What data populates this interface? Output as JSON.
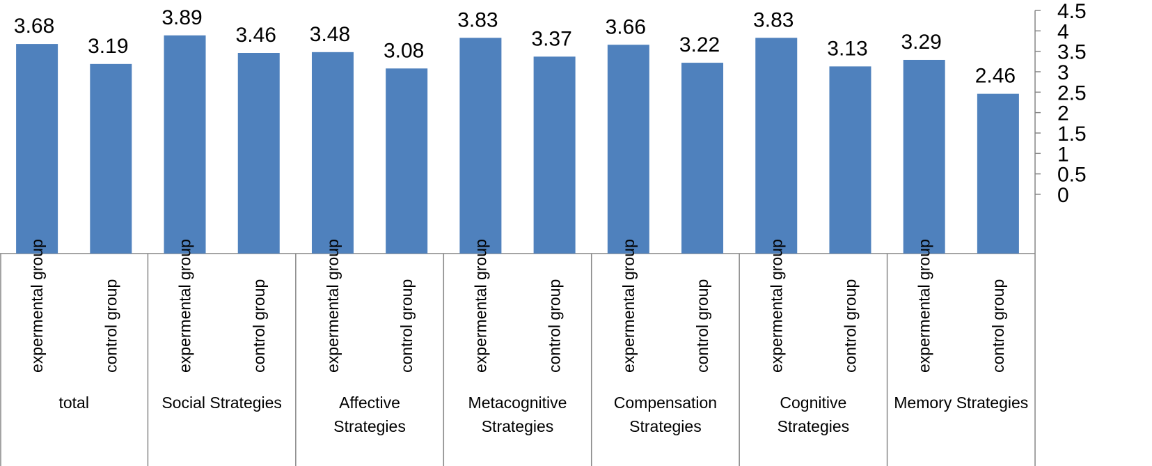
{
  "chart_data": {
    "type": "bar",
    "groups": [
      "total",
      "Social Strategies",
      "Affective Strategies",
      "Metacognitive Strategies",
      "Compensation Strategies",
      "Cognitive Strategies",
      "Memory Strategies"
    ],
    "categories": [
      "expermental group",
      "control group",
      "expermental group",
      "control group",
      "expermental group",
      "control group",
      "expermental group",
      "control group",
      "expermental group",
      "control group",
      "expermental group",
      "control group",
      "expermental group",
      "control group"
    ],
    "values": [
      3.68,
      3.19,
      3.89,
      3.46,
      3.48,
      3.08,
      3.83,
      3.37,
      3.66,
      3.22,
      3.83,
      3.13,
      3.29,
      2.46
    ],
    "color": "#4f81bd",
    "ylim": [
      -1.45,
      4.5
    ],
    "yticks": [
      0,
      0.5,
      1,
      1.5,
      2,
      2.5,
      3,
      3.5,
      4,
      4.5
    ],
    "y_axis_side": "right"
  }
}
